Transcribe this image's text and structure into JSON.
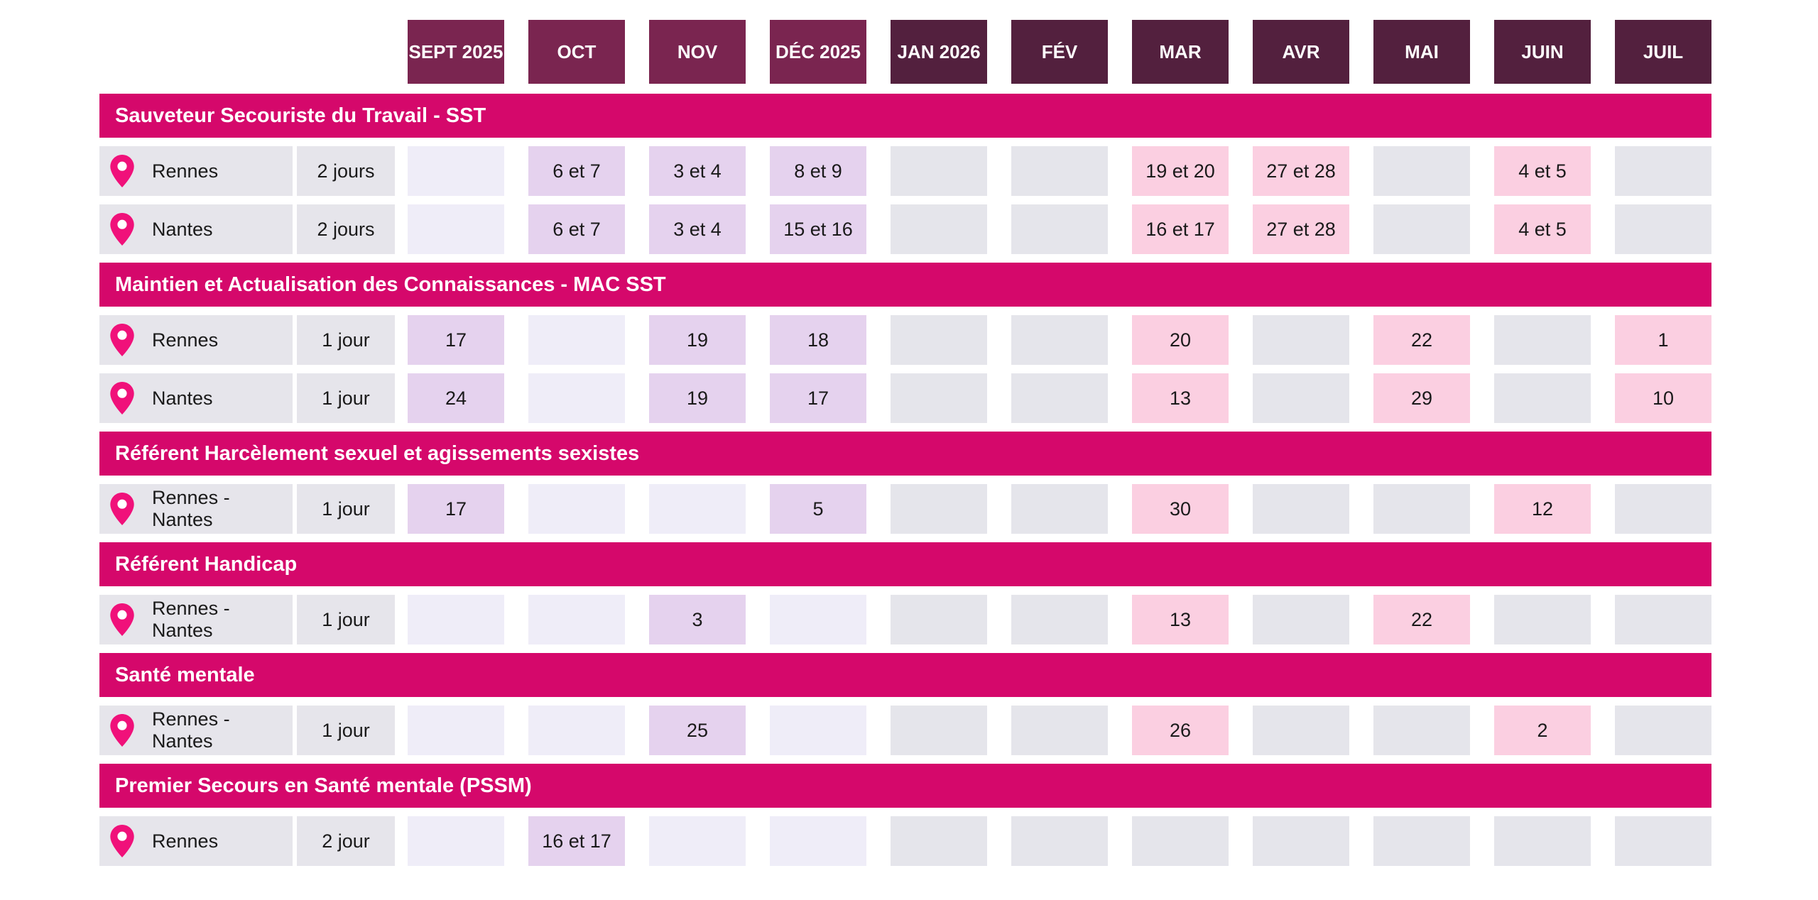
{
  "colors": {
    "month_2025": "#7a2550",
    "month_2026": "#53203e",
    "section": "#d5086b",
    "cell_gray": "#e6e5eb",
    "empty_2025": "#efedf8",
    "empty_2026": "#e5e5eb",
    "filled_2025": "#e5d2ee",
    "filled_2026": "#fbcfe1",
    "pin": "#f0117a",
    "text": "#1a1a1a"
  },
  "months": [
    {
      "label": "SEPT 2025",
      "year": "2025"
    },
    {
      "label": "OCT",
      "year": "2025"
    },
    {
      "label": "NOV",
      "year": "2025"
    },
    {
      "label": "DÉC 2025",
      "year": "2025"
    },
    {
      "label": "JAN 2026",
      "year": "2026"
    },
    {
      "label": "FÉV",
      "year": "2026"
    },
    {
      "label": "MAR",
      "year": "2026"
    },
    {
      "label": "AVR",
      "year": "2026"
    },
    {
      "label": "MAI",
      "year": "2026"
    },
    {
      "label": "JUIN",
      "year": "2026"
    },
    {
      "label": "JUIL",
      "year": "2026"
    }
  ],
  "sections": [
    {
      "title": "Sauveteur Secouriste du Travail - SST",
      "rows": [
        {
          "location": "Rennes",
          "duration": "2 jours",
          "dates": [
            "",
            "6 et 7",
            "3 et 4",
            "8 et 9",
            "",
            "",
            "19 et 20",
            "27 et 28",
            "",
            "4 et 5",
            ""
          ]
        },
        {
          "location": "Nantes",
          "duration": "2 jours",
          "dates": [
            "",
            "6 et 7",
            "3 et 4",
            "15 et 16",
            "",
            "",
            "16 et 17",
            "27 et 28",
            "",
            "4 et 5",
            ""
          ]
        }
      ]
    },
    {
      "title": "Maintien et Actualisation des Connaissances - MAC SST",
      "rows": [
        {
          "location": "Rennes",
          "duration": "1 jour",
          "dates": [
            "17",
            "",
            "19",
            "18",
            "",
            "",
            "20",
            "",
            "22",
            "",
            "1"
          ]
        },
        {
          "location": "Nantes",
          "duration": "1 jour",
          "dates": [
            "24",
            "",
            "19",
            "17",
            "",
            "",
            "13",
            "",
            "29",
            "",
            "10"
          ]
        }
      ]
    },
    {
      "title": "Référent Harcèlement sexuel et agissements sexistes",
      "rows": [
        {
          "location": "Rennes - Nantes",
          "duration": "1 jour",
          "dates": [
            "17",
            "",
            "",
            "5",
            "",
            "",
            "30",
            "",
            "",
            "12",
            ""
          ]
        }
      ]
    },
    {
      "title": "Référent Handicap",
      "rows": [
        {
          "location": "Rennes - Nantes",
          "duration": "1 jour",
          "dates": [
            "",
            "",
            "3",
            "",
            "",
            "",
            "13",
            "",
            "22",
            "",
            ""
          ]
        }
      ]
    },
    {
      "title": "Santé mentale",
      "rows": [
        {
          "location": "Rennes - Nantes",
          "duration": "1 jour",
          "dates": [
            "",
            "",
            "25",
            "",
            "",
            "",
            "26",
            "",
            "",
            "2",
            ""
          ]
        }
      ]
    },
    {
      "title": "Premier Secours en Santé mentale (PSSM)",
      "rows": [
        {
          "location": "Rennes",
          "duration": "2 jour",
          "dates": [
            "",
            "16 et 17",
            "",
            "",
            "",
            "",
            "",
            "",
            "",
            "",
            ""
          ]
        }
      ]
    }
  ]
}
